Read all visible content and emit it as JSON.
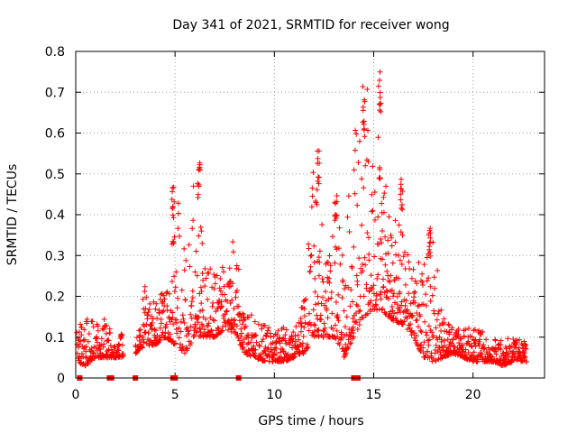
{
  "chart_data": {
    "type": "scatter",
    "title": "Day 341 of 2021, SRMTID for receiver wong",
    "xlabel": "GPS time / hours",
    "ylabel": "SRMTID / TECUs",
    "xlim": [
      0,
      23.6
    ],
    "ylim": [
      0,
      0.8
    ],
    "x_ticks": [
      0,
      5,
      10,
      15,
      20
    ],
    "x_tick_labels": [
      "0",
      "5",
      "10",
      "15",
      "20"
    ],
    "y_ticks": [
      0,
      0.1,
      0.2,
      0.3,
      0.4,
      0.5,
      0.6,
      0.7,
      0.8
    ],
    "y_tick_labels": [
      "0",
      "0.1",
      "0.2",
      "0.3",
      "0.4",
      "0.5",
      "0.6",
      "0.7",
      "0.8"
    ],
    "grid": true,
    "marker": "+",
    "color": "#ff0000",
    "envelope": {
      "x": [
        0,
        0.5,
        1,
        1.5,
        2,
        2.5,
        3,
        3.5,
        4,
        4.5,
        5,
        5.5,
        6,
        6.5,
        7,
        7.5,
        8,
        8.5,
        9,
        9.5,
        10,
        10.5,
        11,
        11.5,
        12,
        12.5,
        13,
        13.5,
        14,
        14.5,
        15,
        15.5,
        16,
        16.5,
        17,
        17.5,
        18,
        18.5,
        19,
        19.5,
        20,
        20.5,
        21,
        21.5,
        22,
        22.7
      ],
      "low": [
        0.04,
        0.03,
        0.05,
        0.05,
        0.05,
        0.05,
        0.06,
        0.08,
        0.08,
        0.1,
        0.08,
        0.06,
        0.1,
        0.1,
        0.1,
        0.12,
        0.11,
        0.06,
        0.05,
        0.04,
        0.04,
        0.04,
        0.05,
        0.06,
        0.1,
        0.1,
        0.1,
        0.05,
        0.1,
        0.15,
        0.17,
        0.16,
        0.14,
        0.13,
        0.1,
        0.05,
        0.04,
        0.05,
        0.06,
        0.05,
        0.04,
        0.04,
        0.04,
        0.03,
        0.04,
        0.04
      ],
      "high": [
        0.14,
        0.15,
        0.14,
        0.16,
        0.08,
        0.13,
        0.08,
        0.23,
        0.18,
        0.24,
        0.47,
        0.35,
        0.53,
        0.3,
        0.26,
        0.29,
        0.35,
        0.17,
        0.15,
        0.13,
        0.12,
        0.13,
        0.12,
        0.2,
        0.55,
        0.37,
        0.45,
        0.32,
        0.6,
        0.72,
        0.75,
        0.48,
        0.45,
        0.38,
        0.3,
        0.3,
        0.37,
        0.15,
        0.12,
        0.12,
        0.13,
        0.12,
        0.1,
        0.1,
        0.1,
        0.1
      ]
    },
    "peaks": [
      {
        "x": 4.9,
        "y": 0.47
      },
      {
        "x": 6.2,
        "y": 0.53
      },
      {
        "x": 12.2,
        "y": 0.56
      },
      {
        "x": 13.1,
        "y": 0.45
      },
      {
        "x": 14.5,
        "y": 0.72
      },
      {
        "x": 15.3,
        "y": 0.75
      },
      {
        "x": 16.4,
        "y": 0.5
      },
      {
        "x": 17.8,
        "y": 0.37
      }
    ],
    "zero_markers_x": [
      0.2,
      1.7,
      1.8,
      3.0,
      4.9,
      5.0,
      8.2,
      14.0,
      14.1,
      14.2
    ]
  }
}
